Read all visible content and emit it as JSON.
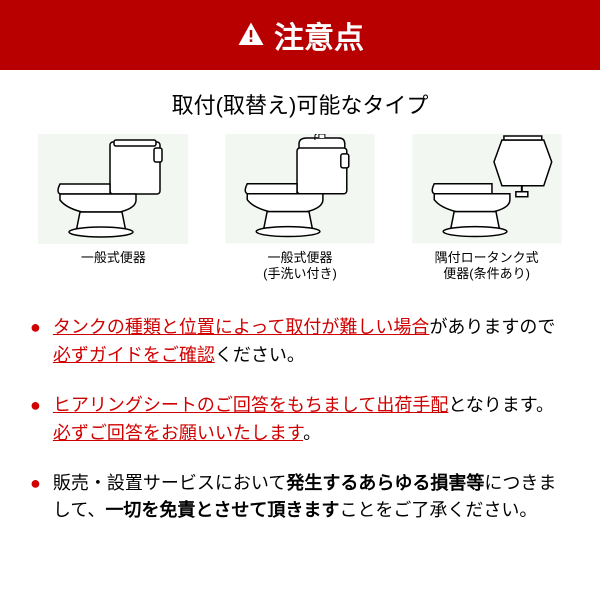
{
  "colors": {
    "header_bg": "#b80000",
    "header_text": "#ffffff",
    "bullet": "#d00000",
    "emphasis": "#d00000",
    "text": "#000000",
    "illus_bg": "#f2f7f2",
    "illus_line": "#000000"
  },
  "header": {
    "title": "注意点"
  },
  "subtitle": "取付(取替え)可能なタイプ",
  "illustrations": {
    "item1": {
      "label": "一般式便器"
    },
    "item2": {
      "label": "一般式便器\n(手洗い付き)"
    },
    "item3": {
      "label": "隅付ロータンク式\n便器(条件あり)"
    }
  },
  "notes": {
    "n1": {
      "part1": "タンクの種類と位置によって取付が難しい場合",
      "part2": "がありますので",
      "part3": "必ずガイドをご確認",
      "part4": "ください。"
    },
    "n2": {
      "part1": "ヒアリングシートのご回答をもちまして出荷手配",
      "part2": "となります。",
      "part3": "必ずご回答をお願いいたします",
      "part4": "。"
    },
    "n3": {
      "part1": "販売・設置サービスにおいて",
      "part2": "発生するあらゆる損害等",
      "part3": "につきまして、",
      "part4": "一切を免責とさせて頂きます",
      "part5": "ことをご了承ください。"
    }
  }
}
